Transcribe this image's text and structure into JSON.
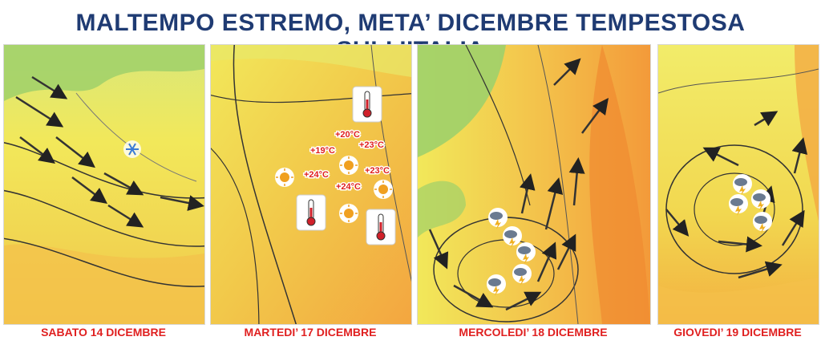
{
  "title": "MALTEMPO ESTREMO, META’ DICEMBRE TEMPESTOSA SULL’ITALIA",
  "colors": {
    "title": "#1f3b73",
    "caption": "#e02020",
    "map_yellow": "#f2e85a",
    "map_orange": "#f3a640",
    "map_green": "#9fd06a",
    "temperature_label": "#e01e1e"
  },
  "panels": [
    {
      "caption": "SABATO 14 DICEMBRE",
      "icons": [
        "wind-arrow-icon",
        "snowflake-icon"
      ]
    },
    {
      "caption": "MARTEDI’ 17 DICEMBRE",
      "icons": [
        "sun-icon",
        "thermometer-icon"
      ],
      "temperatures": [
        "+20°C",
        "+19°C",
        "+23°C",
        "+24°C",
        "+23°C",
        "+24°C"
      ]
    },
    {
      "caption": "MERCOLEDI’ 18 DICEMBRE",
      "icons": [
        "wind-arrow-icon",
        "thunderstorm-cloud-icon"
      ]
    },
    {
      "caption": "GIOVEDI’ 19 DICEMBRE",
      "icons": [
        "wind-arrow-icon",
        "thunderstorm-cloud-icon"
      ]
    }
  ]
}
